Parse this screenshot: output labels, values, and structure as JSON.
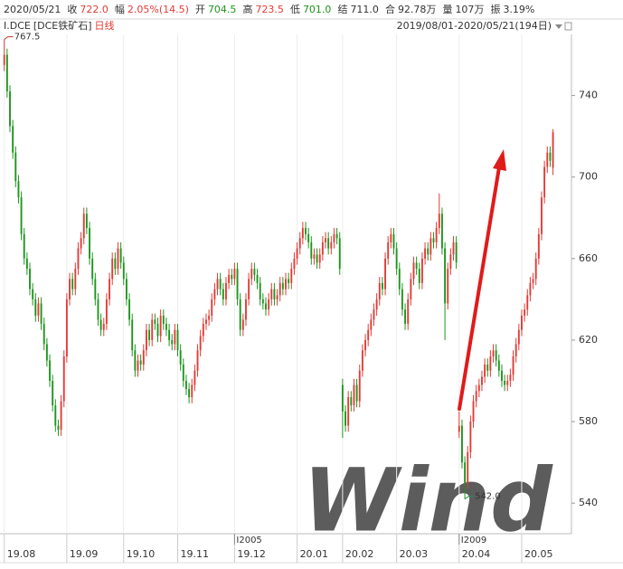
{
  "header": {
    "date": "2020/05/21",
    "items": [
      {
        "label": "收",
        "value": "722.0",
        "tone": "up"
      },
      {
        "label": "幅",
        "value": "2.05%(14.5)",
        "tone": "up"
      },
      {
        "label": "开",
        "value": "704.5",
        "tone": "down"
      },
      {
        "label": "高",
        "value": "723.5",
        "tone": "up"
      },
      {
        "label": "低",
        "value": "701.0",
        "tone": "down"
      },
      {
        "label": "结",
        "value": "711.0",
        "tone": "flat"
      },
      {
        "label": "合",
        "value": "92.78万",
        "tone": "flat"
      },
      {
        "label": "量",
        "value": "107万",
        "tone": "flat"
      },
      {
        "label": "振",
        "value": "3.19%",
        "tone": "flat"
      }
    ],
    "code": "I.DCE",
    "name": "[DCE铁矿石]",
    "period": "日线",
    "range": "2019/08/01-2020/05/21(194日)"
  },
  "chart_data": {
    "type": "candlestick",
    "watermark": "Wind",
    "up_color": "#e23b36",
    "down_color": "#1e951e",
    "grid": "x",
    "open": [
      755,
      760,
      742,
      725,
      712,
      698,
      690,
      672,
      660,
      655,
      645,
      640,
      632,
      638,
      628,
      618,
      610,
      600,
      588,
      578,
      576,
      590,
      612,
      640,
      650,
      645,
      655,
      665,
      670,
      682,
      675,
      660,
      650,
      640,
      630,
      625,
      628,
      640,
      650,
      660,
      655,
      665,
      658,
      650,
      640,
      630,
      615,
      605,
      610,
      608,
      615,
      625,
      620,
      630,
      628,
      622,
      632,
      628,
      625,
      620,
      618,
      625,
      615,
      608,
      600,
      596,
      592,
      598,
      605,
      615,
      622,
      628,
      630,
      632,
      640,
      645,
      650,
      645,
      640,
      648,
      652,
      650,
      655,
      640,
      625,
      630,
      640,
      650,
      655,
      652,
      648,
      640,
      638,
      635,
      640,
      645,
      640,
      642,
      648,
      645,
      650,
      648,
      655,
      660,
      665,
      670,
      675,
      672,
      668,
      660,
      662,
      658,
      662,
      668,
      670,
      665,
      668,
      672,
      670,
      598,
      585,
      578,
      592,
      588,
      598,
      590,
      605,
      615,
      620,
      625,
      630,
      635,
      640,
      648,
      645,
      660,
      668,
      672,
      665,
      655,
      645,
      635,
      628,
      640,
      650,
      658,
      655,
      648,
      660,
      665,
      662,
      670,
      668,
      675,
      682,
      665,
      638,
      655,
      662,
      668,
      575,
      578,
      560,
      550,
      565,
      580,
      590,
      595,
      598,
      602,
      608,
      605,
      612,
      615,
      610,
      605,
      600,
      598,
      600,
      603,
      612,
      618,
      625,
      632,
      635,
      642,
      648,
      650,
      660,
      672,
      690,
      705,
      712,
      704.5
    ],
    "high": [
      767.5,
      763,
      745,
      728,
      715,
      701,
      693,
      675,
      663,
      658,
      648,
      643,
      641,
      641,
      631,
      621,
      613,
      603,
      591,
      581,
      593,
      615,
      643,
      653,
      653,
      658,
      668,
      673,
      685,
      685,
      678,
      663,
      653,
      643,
      633,
      631,
      643,
      653,
      663,
      663,
      668,
      668,
      661,
      653,
      643,
      633,
      618,
      613,
      613,
      618,
      628,
      628,
      633,
      633,
      631,
      635,
      635,
      631,
      628,
      623,
      628,
      628,
      618,
      611,
      603,
      599,
      601,
      608,
      618,
      625,
      631,
      633,
      635,
      643,
      648,
      653,
      653,
      648,
      651,
      655,
      655,
      658,
      658,
      643,
      633,
      643,
      653,
      658,
      658,
      655,
      651,
      643,
      641,
      643,
      648,
      648,
      645,
      651,
      651,
      653,
      653,
      658,
      663,
      668,
      673,
      678,
      678,
      675,
      671,
      665,
      665,
      665,
      671,
      673,
      673,
      671,
      675,
      675,
      673,
      601,
      588,
      595,
      595,
      601,
      601,
      608,
      618,
      623,
      628,
      633,
      638,
      643,
      651,
      651,
      663,
      671,
      675,
      675,
      668,
      658,
      648,
      638,
      643,
      653,
      661,
      661,
      658,
      663,
      668,
      668,
      673,
      673,
      678,
      692,
      685,
      668,
      658,
      665,
      671,
      671,
      585,
      581,
      563,
      568,
      583,
      593,
      598,
      601,
      605,
      611,
      611,
      615,
      618,
      618,
      613,
      608,
      603,
      603,
      606,
      615,
      621,
      628,
      635,
      638,
      645,
      651,
      653,
      663,
      675,
      693,
      708,
      715,
      715,
      723.5
    ],
    "low": [
      752,
      739,
      722,
      709,
      695,
      687,
      669,
      657,
      652,
      642,
      637,
      629,
      629,
      625,
      615,
      607,
      597,
      585,
      575,
      573,
      573,
      587,
      609,
      637,
      642,
      642,
      652,
      662,
      667,
      672,
      657,
      647,
      637,
      627,
      622,
      622,
      625,
      637,
      647,
      652,
      652,
      655,
      647,
      637,
      627,
      612,
      602,
      602,
      605,
      605,
      612,
      617,
      617,
      625,
      619,
      619,
      625,
      622,
      617,
      615,
      615,
      612,
      605,
      597,
      593,
      589,
      589,
      595,
      602,
      612,
      619,
      625,
      627,
      629,
      637,
      642,
      642,
      637,
      637,
      645,
      647,
      647,
      637,
      622,
      622,
      627,
      637,
      647,
      649,
      645,
      637,
      635,
      632,
      632,
      637,
      637,
      637,
      639,
      642,
      642,
      645,
      645,
      652,
      657,
      662,
      667,
      669,
      665,
      657,
      657,
      655,
      655,
      659,
      665,
      662,
      662,
      665,
      667,
      652,
      572,
      575,
      575,
      585,
      585,
      587,
      587,
      602,
      612,
      617,
      622,
      627,
      632,
      637,
      642,
      642,
      657,
      665,
      662,
      652,
      642,
      632,
      625,
      625,
      637,
      647,
      652,
      645,
      645,
      657,
      659,
      659,
      665,
      665,
      672,
      662,
      620,
      635,
      652,
      659,
      655,
      572,
      557,
      542,
      547,
      562,
      577,
      587,
      592,
      595,
      599,
      602,
      602,
      609,
      607,
      602,
      597,
      595,
      595,
      597,
      600,
      609,
      615,
      622,
      629,
      632,
      639,
      645,
      647,
      657,
      669,
      687,
      702,
      705,
      701
    ],
    "close": [
      760,
      742,
      725,
      712,
      698,
      690,
      672,
      660,
      655,
      645,
      640,
      632,
      638,
      628,
      618,
      610,
      600,
      588,
      578,
      576,
      590,
      612,
      640,
      650,
      645,
      655,
      665,
      670,
      682,
      675,
      660,
      650,
      640,
      630,
      625,
      628,
      640,
      650,
      660,
      655,
      665,
      658,
      650,
      640,
      630,
      615,
      605,
      610,
      608,
      615,
      625,
      620,
      630,
      628,
      622,
      632,
      628,
      625,
      620,
      618,
      625,
      615,
      608,
      600,
      596,
      592,
      598,
      605,
      615,
      622,
      628,
      630,
      632,
      640,
      645,
      650,
      645,
      640,
      648,
      652,
      650,
      655,
      640,
      625,
      630,
      640,
      650,
      655,
      652,
      648,
      640,
      638,
      635,
      640,
      645,
      640,
      642,
      648,
      645,
      650,
      648,
      655,
      660,
      665,
      670,
      675,
      672,
      668,
      660,
      662,
      658,
      662,
      668,
      670,
      665,
      668,
      672,
      670,
      655,
      585,
      578,
      592,
      588,
      598,
      590,
      605,
      615,
      620,
      625,
      630,
      635,
      640,
      648,
      645,
      660,
      668,
      672,
      665,
      655,
      645,
      635,
      628,
      640,
      650,
      658,
      655,
      648,
      660,
      665,
      662,
      670,
      668,
      675,
      682,
      665,
      638,
      655,
      662,
      668,
      658,
      578,
      560,
      550,
      565,
      580,
      590,
      595,
      598,
      602,
      608,
      605,
      612,
      615,
      610,
      605,
      600,
      598,
      600,
      603,
      612,
      618,
      625,
      632,
      635,
      642,
      648,
      650,
      660,
      672,
      690,
      705,
      712,
      708,
      722
    ],
    "xlim": [
      -1.5,
      199.5
    ],
    "xticks": [
      {
        "value": 0,
        "label": "19.08"
      },
      {
        "value": 22,
        "label": "19.09"
      },
      {
        "value": 42,
        "label": "19.10"
      },
      {
        "value": 61,
        "label": "19.11"
      },
      {
        "value": 81,
        "label": "19.12"
      },
      {
        "value": 103,
        "label": "20.01"
      },
      {
        "value": 119,
        "label": "20.02"
      },
      {
        "value": 138,
        "label": "20.03"
      },
      {
        "value": 160,
        "label": "20.04"
      },
      {
        "value": 182,
        "label": "20.05"
      }
    ],
    "ylim": [
      525,
      770
    ],
    "yticks": [
      540,
      580,
      620,
      660,
      700,
      740
    ],
    "contracts": [
      {
        "index": 81,
        "label": "I2005"
      },
      {
        "index": 160,
        "label": "I2009"
      }
    ],
    "extremes": [
      {
        "index": 0,
        "kind": "high",
        "label": "767.5"
      },
      {
        "index": 162,
        "kind": "low",
        "label": "542.0"
      }
    ]
  }
}
